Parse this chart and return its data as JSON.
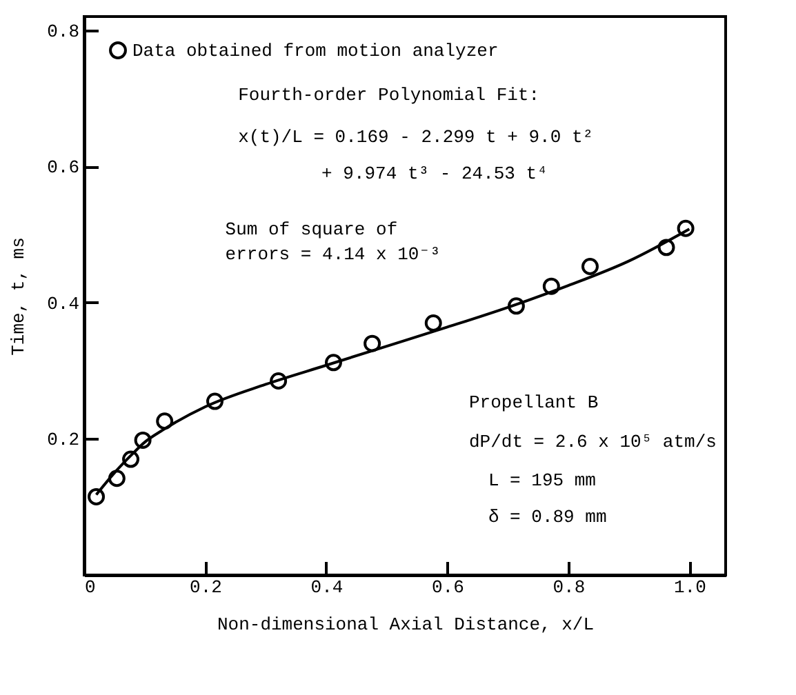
{
  "chart_data": {
    "type": "scatter",
    "xlabel": "Non-dimensional Axial Distance, x/L",
    "ylabel": "Time, t, ms",
    "xlim": [
      0,
      1.06
    ],
    "ylim": [
      0,
      0.82
    ],
    "xticks": [
      0,
      0.2,
      0.4,
      0.6,
      0.8,
      {
        "value": 1,
        "label": "1.0"
      }
    ],
    "yticks": [
      0.2,
      0.4,
      0.6,
      0.8
    ],
    "grid": false,
    "legend": "top left",
    "marker": "circle",
    "series": [
      {
        "name": "Data obtained from motion analyzer",
        "color": "#000000",
        "x": [
          0.02,
          0.054,
          0.077,
          0.097,
          0.133,
          0.216,
          0.321,
          0.412,
          0.476,
          0.577,
          0.714,
          0.772,
          0.836,
          0.962,
          0.994
        ],
        "values": [
          0.115,
          0.142,
          0.17,
          0.198,
          0.226,
          0.255,
          0.285,
          0.312,
          0.34,
          0.37,
          0.395,
          0.424,
          0.453,
          0.481,
          0.509
        ]
      },
      {
        "type": "line",
        "color": "#000000",
        "line_style": "solid",
        "marker": "none",
        "x": [
          0.02,
          0.05,
          0.08,
          0.1,
          0.13,
          0.2,
          0.3,
          0.4,
          0.5,
          0.6,
          0.7,
          0.8,
          0.9,
          1.0
        ],
        "values": [
          0.118,
          0.15,
          0.178,
          0.195,
          0.213,
          0.247,
          0.28,
          0.308,
          0.336,
          0.364,
          0.393,
          0.425,
          0.461,
          0.508
        ]
      }
    ],
    "annotations": [
      "Fourth-order Polynomial Fit:",
      "x(t)/L = 0.169 - 2.299 t + 9.0 t²",
      "+ 9.974 t³ - 24.53 t⁴",
      "Sum of square of",
      "errors = 4.14 x 10⁻³",
      "Propellant B",
      "dP/dt = 2.6 x 10⁵ atm/s",
      "L = 195 mm",
      "δ = 0.89 mm"
    ]
  }
}
